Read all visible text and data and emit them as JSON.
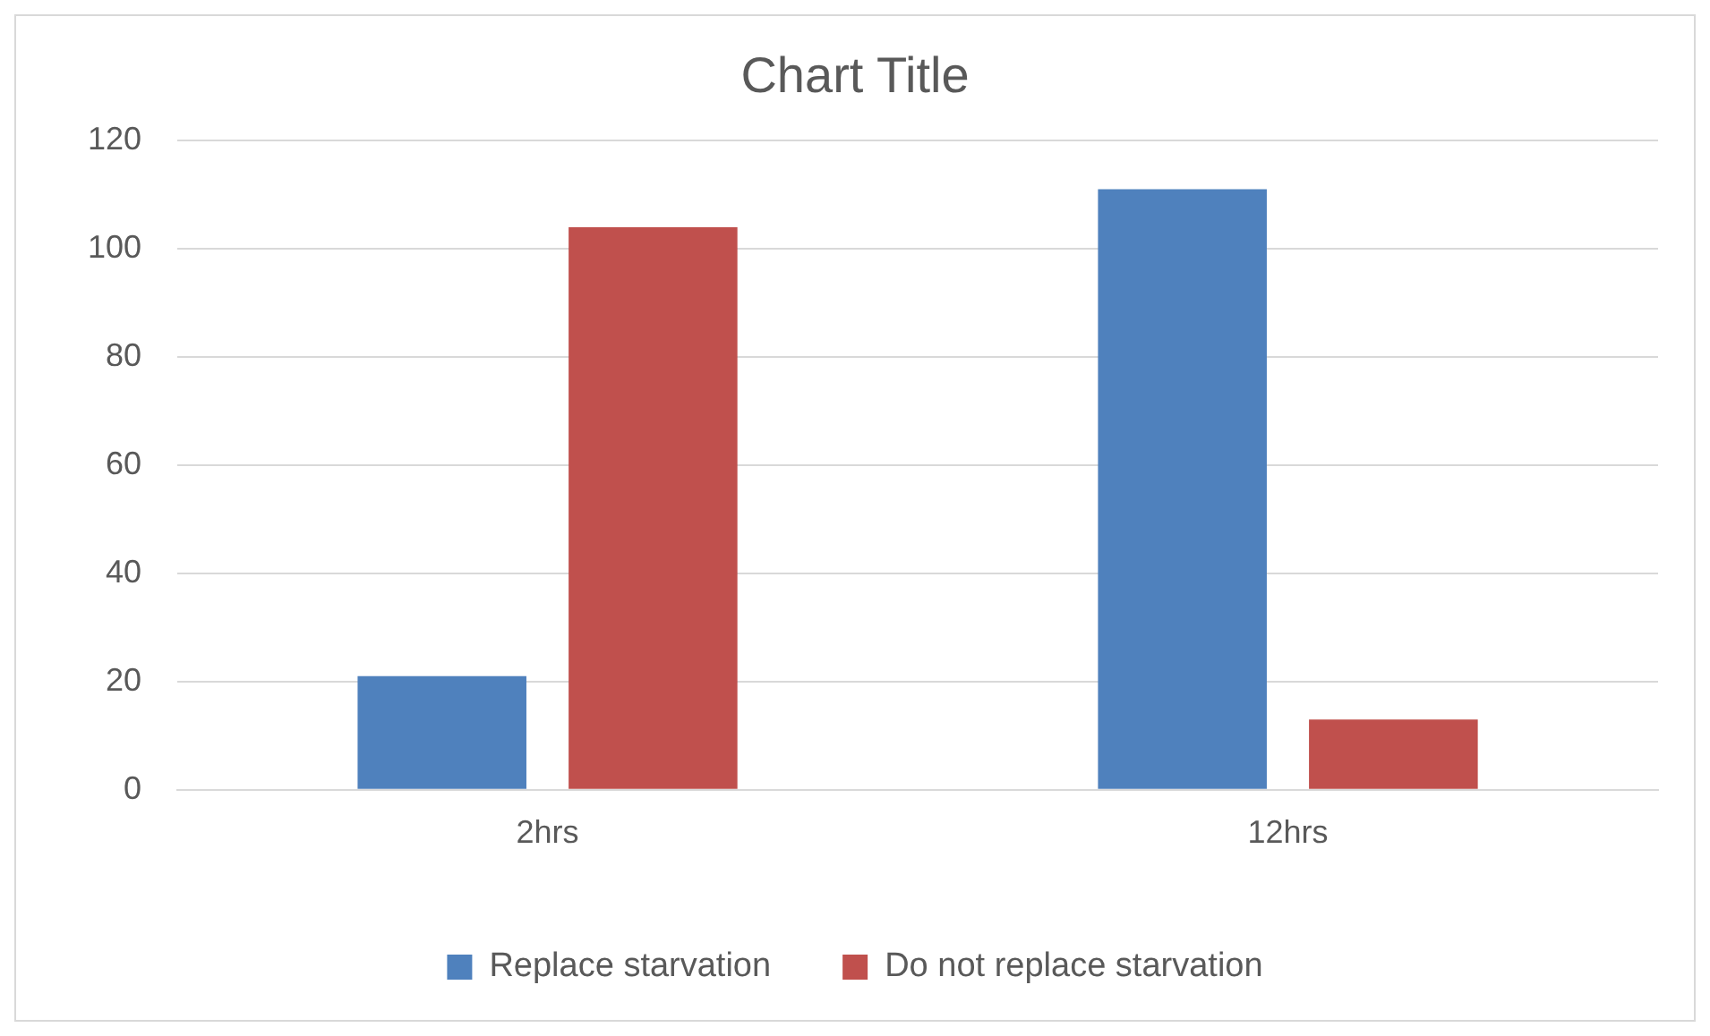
{
  "chart_data": {
    "type": "bar",
    "title": "Chart Title",
    "categories": [
      "2hrs",
      "12hrs"
    ],
    "series": [
      {
        "name": "Replace starvation",
        "color": "#4f81bd",
        "values": [
          21,
          111
        ]
      },
      {
        "name": "Do not replace starvation",
        "color": "#c0504d",
        "values": [
          104,
          13
        ]
      }
    ],
    "ylim": [
      0,
      120
    ],
    "yticks": [
      0,
      20,
      40,
      60,
      80,
      100,
      120
    ],
    "grid": "y",
    "legend": "bottom"
  }
}
